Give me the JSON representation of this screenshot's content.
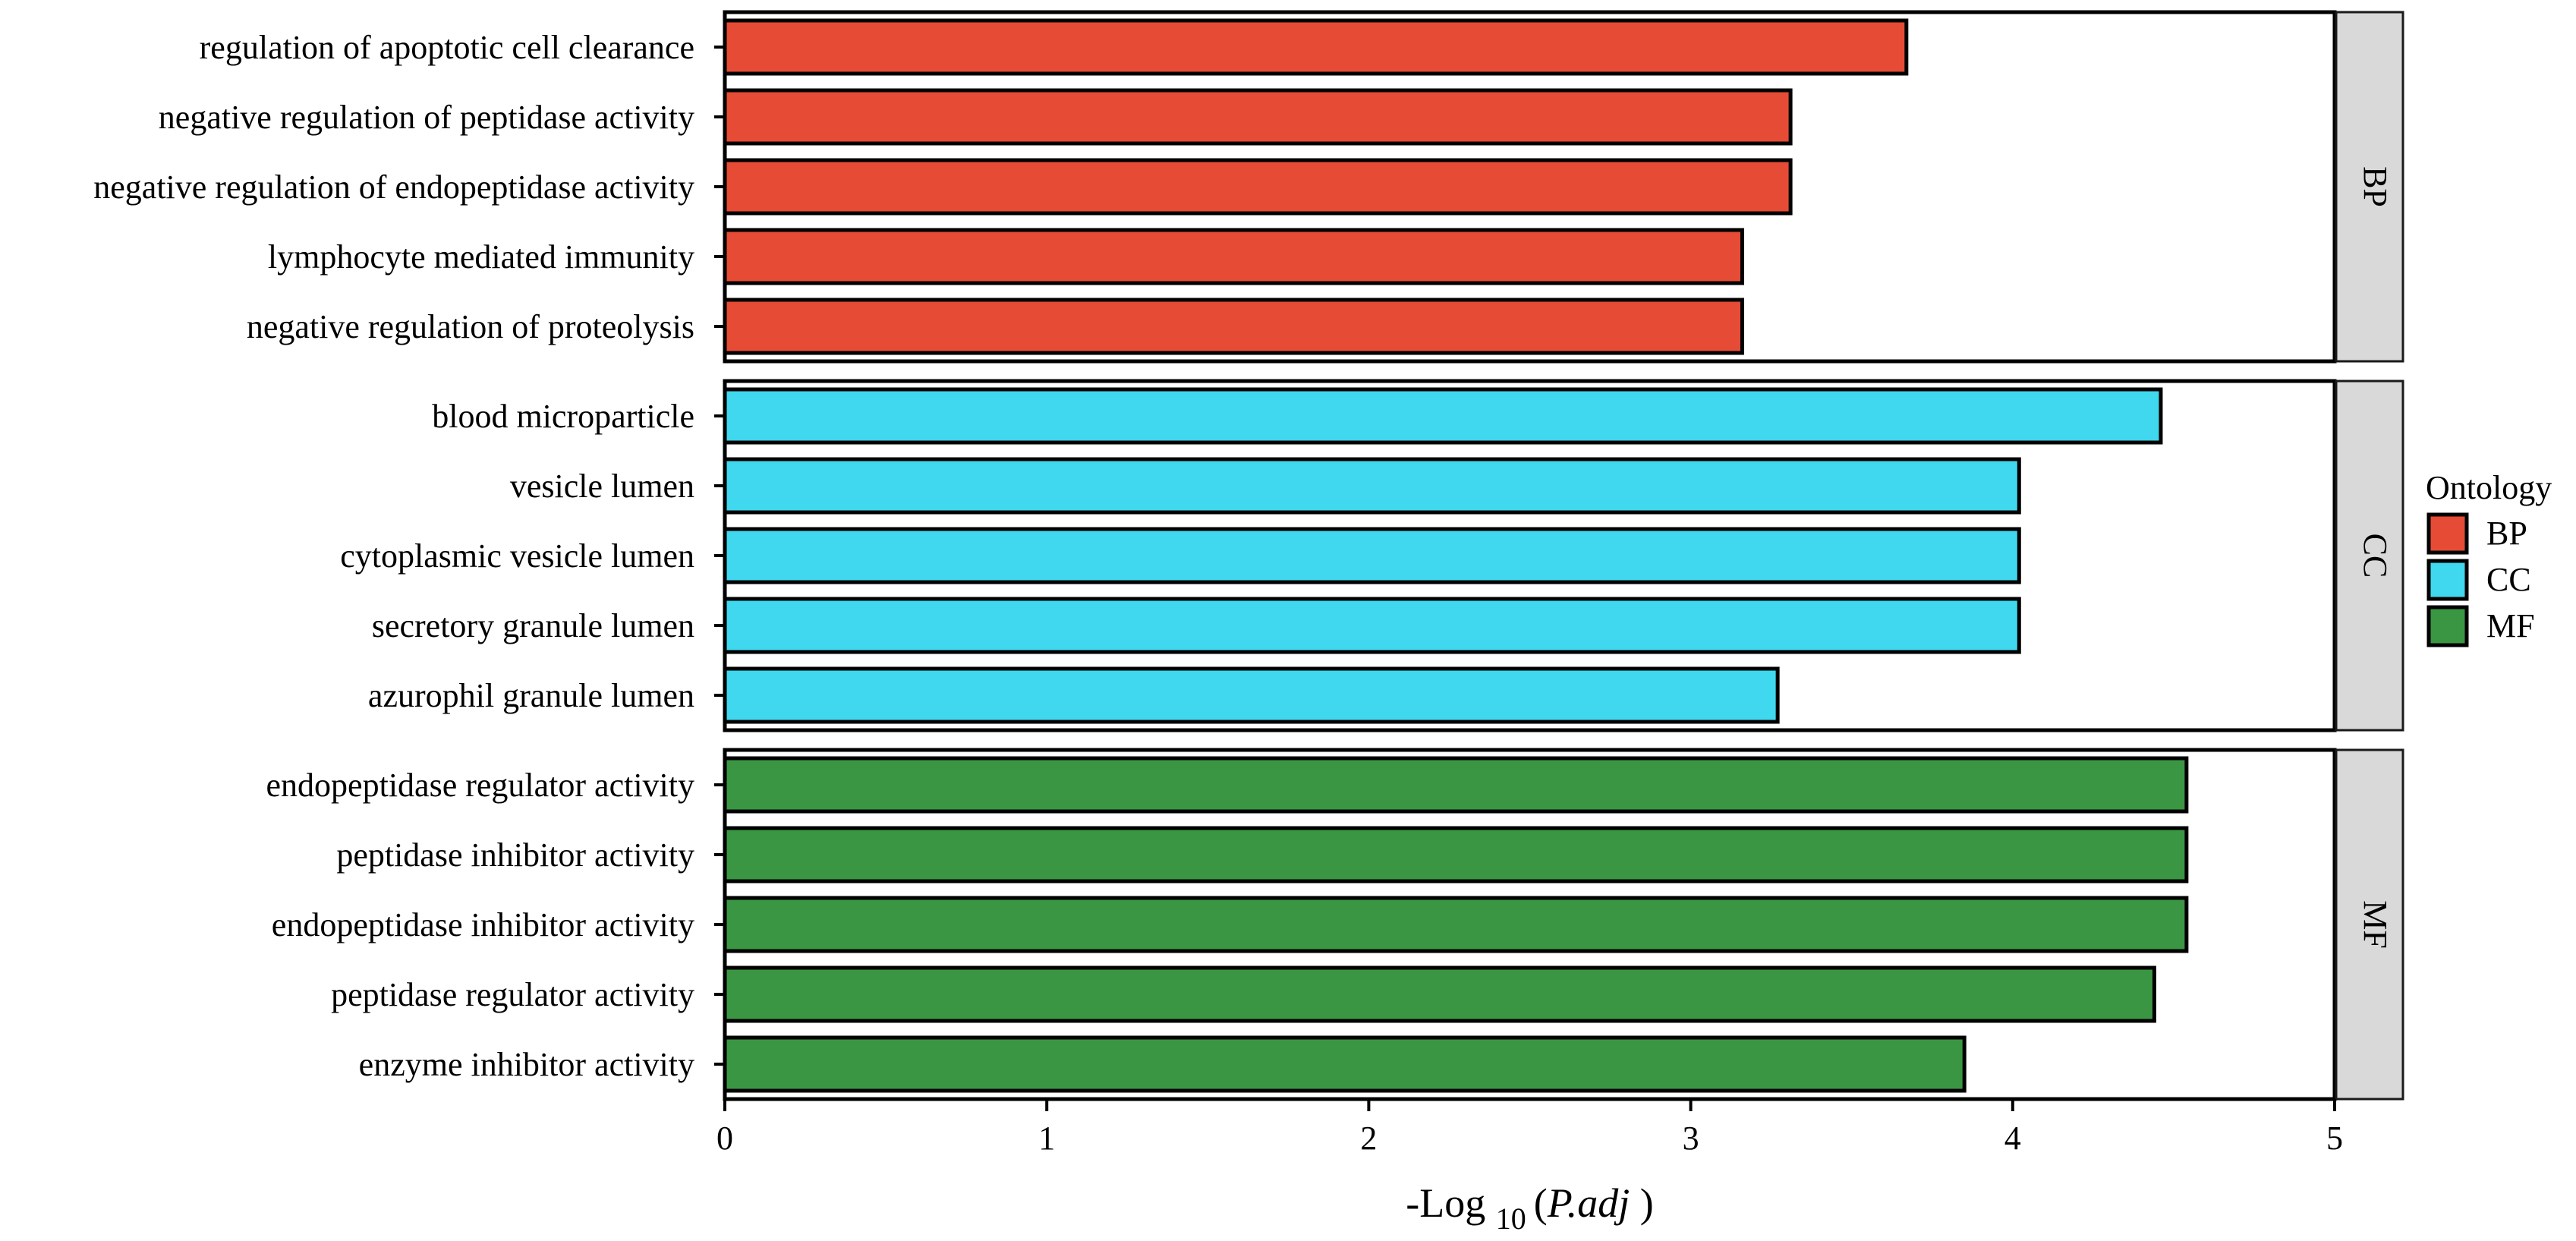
{
  "chart_data": {
    "type": "bar",
    "orientation": "horizontal",
    "xlabel": {
      "prefix": "-Log",
      "subscript": "10",
      "open": "(",
      "italic": "P.adj",
      "close": ")"
    },
    "xlim": [
      0,
      5
    ],
    "xticks": [
      "0",
      "1",
      "2",
      "3",
      "4",
      "5"
    ],
    "grid": false,
    "legend": {
      "title": "Ontology",
      "position": "right",
      "items": [
        {
          "name": "BP",
          "color": "#E64B35"
        },
        {
          "name": "CC",
          "color": "#3FD8EE"
        },
        {
          "name": "MF",
          "color": "#3A9642"
        }
      ]
    },
    "facets": [
      {
        "name": "BP",
        "color": "#E64B35",
        "categories": [
          "regulation of apoptotic cell clearance",
          "negative regulation of peptidase activity",
          "negative regulation of endopeptidase activity",
          "lymphocyte mediated immunity",
          "negative regulation of proteolysis"
        ],
        "values": [
          3.67,
          3.31,
          3.31,
          3.16,
          3.16
        ]
      },
      {
        "name": "CC",
        "color": "#3FD8EE",
        "categories": [
          "blood microparticle",
          "vesicle lumen",
          "cytoplasmic vesicle lumen",
          "secretory granule lumen",
          "azurophil granule lumen"
        ],
        "values": [
          4.46,
          4.02,
          4.02,
          4.02,
          3.27
        ]
      },
      {
        "name": "MF",
        "color": "#3A9642",
        "categories": [
          "endopeptidase regulator activity",
          "peptidase inhibitor activity",
          "endopeptidase inhibitor activity",
          "peptidase regulator activity",
          "enzyme inhibitor activity"
        ],
        "values": [
          4.54,
          4.54,
          4.54,
          4.44,
          3.85
        ]
      }
    ]
  }
}
